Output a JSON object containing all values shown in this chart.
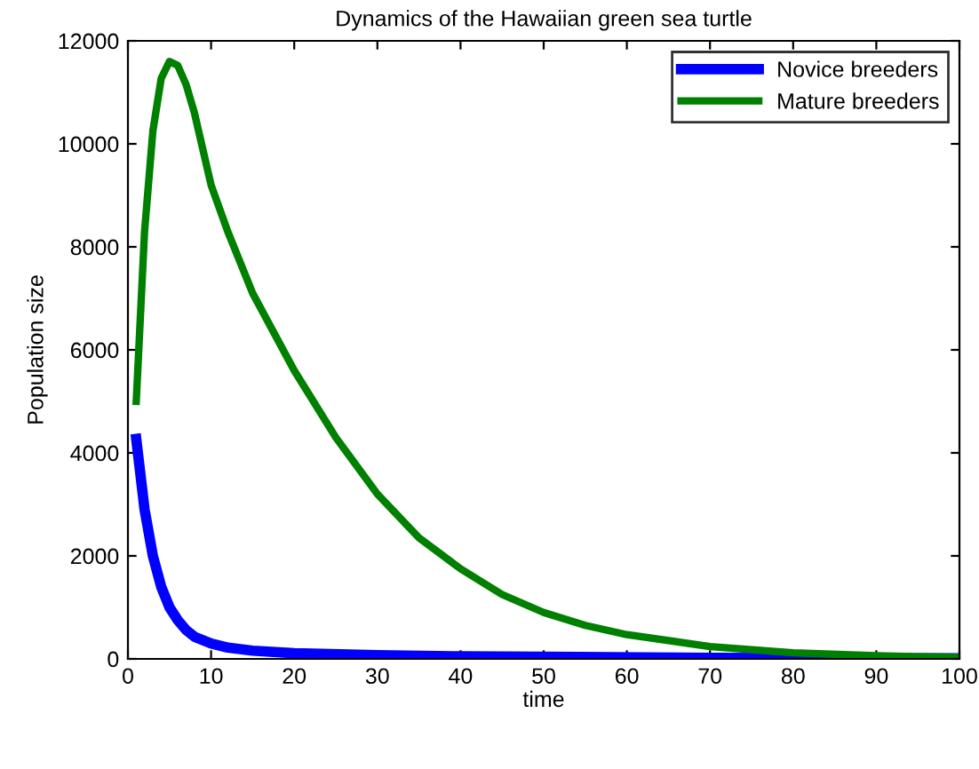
{
  "chart_data": {
    "type": "line",
    "title": "Dynamics of the Hawaiian green sea turtle",
    "xlabel": "time",
    "ylabel": "Population size",
    "xlim": [
      0,
      100
    ],
    "xticks": [
      0,
      10,
      20,
      30,
      40,
      50,
      60,
      70,
      80,
      90,
      100
    ],
    "ylim": [
      0,
      12000
    ],
    "yticks": [
      0,
      2000,
      4000,
      6000,
      8000,
      10000,
      12000
    ],
    "grid": false,
    "legend": "top right",
    "marker": "none",
    "line_style": "solid",
    "series": [
      {
        "name": "Novice breeders",
        "color": "#0000ff",
        "x": [
          1,
          2,
          3,
          4,
          5,
          6,
          7,
          8,
          10,
          12,
          15,
          20,
          30,
          40,
          50,
          70,
          100
        ],
        "values": [
          4270,
          2900,
          2000,
          1400,
          1000,
          750,
          560,
          430,
          300,
          220,
          160,
          110,
          70,
          50,
          40,
          20,
          10
        ]
      },
      {
        "name": "Mature breeders",
        "color": "#008000",
        "x": [
          1,
          2,
          3,
          4,
          5,
          6,
          7,
          8,
          10,
          12,
          15,
          20,
          25,
          30,
          35,
          40,
          45,
          50,
          55,
          60,
          70,
          80,
          90,
          100
        ],
        "values": [
          5000,
          8300,
          10250,
          11270,
          11600,
          11520,
          11150,
          10600,
          9200,
          8300,
          7100,
          5600,
          4300,
          3200,
          2350,
          1750,
          1250,
          900,
          650,
          470,
          240,
          120,
          60,
          30
        ]
      }
    ]
  }
}
